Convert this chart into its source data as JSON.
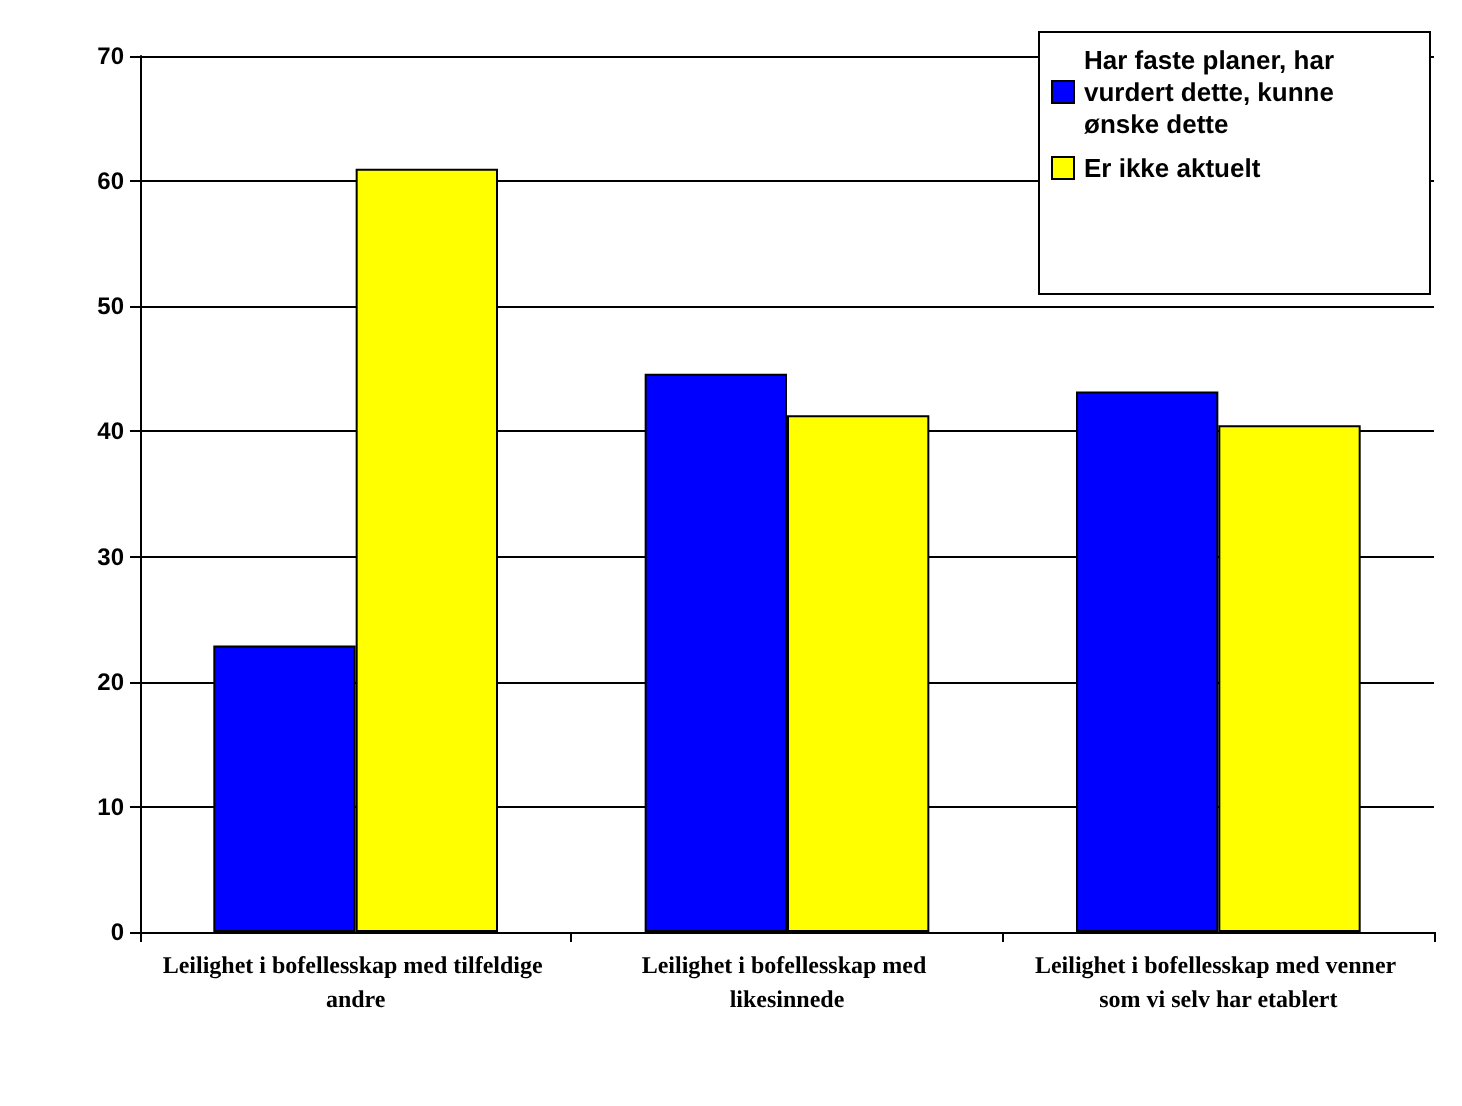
{
  "chart_data": {
    "type": "bar",
    "categories": [
      "Leilighet i bofellesskap med tilfeldige andre",
      "Leilighet i bofellesskap med likesinnede",
      "Leilighet i bofellesskap med venner som vi selv har etablert"
    ],
    "series": [
      {
        "name": "Har faste planer, har vurdert dette, kunne ønske dette",
        "color": "#0000ff",
        "values": [
          22.9,
          44.6,
          43.2
        ]
      },
      {
        "name": "Er ikke aktuelt",
        "color": "#ffff00",
        "values": [
          61,
          41.3,
          40.5
        ]
      }
    ],
    "ylim": [
      0,
      70
    ],
    "yticks": [
      0,
      10,
      20,
      30,
      40,
      50,
      60,
      70
    ],
    "grid": "y",
    "legend": "top right"
  }
}
